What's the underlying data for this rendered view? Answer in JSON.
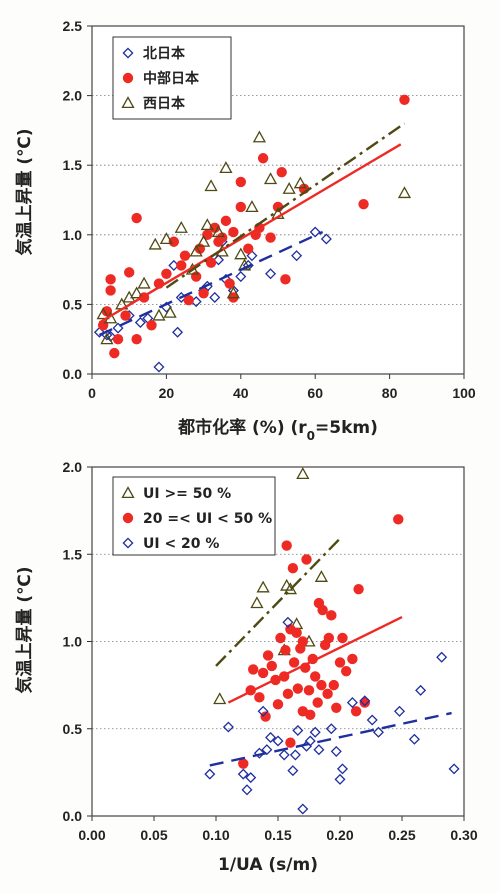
{
  "chart_data": [
    {
      "type": "scatter",
      "xlabel": "都市化率 (%) (r",
      "xlabel_sub": "0",
      "xlabel_tail": "=5km)",
      "ylabel": "気温上昇量 (℃)",
      "xlim": [
        0,
        100
      ],
      "ylim": [
        0,
        2.5
      ],
      "xticks": [
        "0",
        "20",
        "40",
        "60",
        "80",
        "100"
      ],
      "yticks": [
        "0.0",
        "0.5",
        "1.0",
        "1.5",
        "2.0",
        "2.5"
      ],
      "grid": "horizontal dotted",
      "legend_position": "top-left",
      "series": [
        {
          "name": "北日本",
          "marker": "diamond",
          "color": "#1f2f9e",
          "points": [
            [
              2,
              0.3
            ],
            [
              4,
              0.28
            ],
            [
              5,
              0.27
            ],
            [
              7,
              0.33
            ],
            [
              10,
              0.42
            ],
            [
              13,
              0.37
            ],
            [
              15,
              0.4
            ],
            [
              18,
              0.05
            ],
            [
              20,
              0.48
            ],
            [
              22,
              0.78
            ],
            [
              23,
              0.3
            ],
            [
              24,
              0.55
            ],
            [
              28,
              0.52
            ],
            [
              30,
              0.6
            ],
            [
              31,
              0.63
            ],
            [
              33,
              0.55
            ],
            [
              34,
              0.82
            ],
            [
              35,
              0.95
            ],
            [
              36,
              0.68
            ],
            [
              38,
              0.6
            ],
            [
              40,
              0.7
            ],
            [
              42,
              0.78
            ],
            [
              43,
              0.85
            ],
            [
              48,
              0.72
            ],
            [
              55,
              0.85
            ],
            [
              60,
              1.02
            ],
            [
              63,
              0.97
            ]
          ],
          "trend": {
            "x": [
              2,
              62
            ],
            "y": [
              0.28,
              1.02
            ]
          }
        },
        {
          "name": "中部日本",
          "marker": "circle",
          "color": "#ee2a24",
          "points": [
            [
              3,
              0.35
            ],
            [
              4,
              0.45
            ],
            [
              5,
              0.6
            ],
            [
              5,
              0.68
            ],
            [
              6,
              0.15
            ],
            [
              7,
              0.25
            ],
            [
              9,
              0.42
            ],
            [
              10,
              0.73
            ],
            [
              12,
              0.25
            ],
            [
              12,
              1.12
            ],
            [
              14,
              0.55
            ],
            [
              16,
              0.35
            ],
            [
              18,
              0.65
            ],
            [
              20,
              0.72
            ],
            [
              22,
              0.95
            ],
            [
              24,
              0.78
            ],
            [
              25,
              0.85
            ],
            [
              26,
              0.53
            ],
            [
              28,
              0.7
            ],
            [
              29,
              0.9
            ],
            [
              30,
              0.58
            ],
            [
              31,
              1.0
            ],
            [
              32,
              0.8
            ],
            [
              33,
              1.05
            ],
            [
              34,
              0.95
            ],
            [
              35,
              0.98
            ],
            [
              36,
              1.1
            ],
            [
              37,
              0.65
            ],
            [
              38,
              1.02
            ],
            [
              38,
              0.55
            ],
            [
              40,
              1.38
            ],
            [
              40,
              1.2
            ],
            [
              42,
              0.9
            ],
            [
              44,
              1.0
            ],
            [
              45,
              1.05
            ],
            [
              46,
              1.55
            ],
            [
              48,
              0.98
            ],
            [
              50,
              1.2
            ],
            [
              51,
              1.45
            ],
            [
              52,
              0.68
            ],
            [
              57,
              1.33
            ],
            [
              73,
              1.22
            ],
            [
              84,
              1.97
            ]
          ],
          "trend": {
            "x": [
              2,
              83
            ],
            "y": [
              0.37,
              1.65
            ]
          }
        },
        {
          "name": "西日本",
          "marker": "triangle",
          "color": "#4e4a12",
          "points": [
            [
              3,
              0.43
            ],
            [
              4,
              0.25
            ],
            [
              5,
              0.4
            ],
            [
              8,
              0.5
            ],
            [
              10,
              0.55
            ],
            [
              12,
              0.58
            ],
            [
              14,
              0.65
            ],
            [
              17,
              0.93
            ],
            [
              18,
              0.42
            ],
            [
              20,
              0.97
            ],
            [
              21,
              0.44
            ],
            [
              24,
              1.05
            ],
            [
              27,
              0.75
            ],
            [
              28,
              0.88
            ],
            [
              30,
              0.95
            ],
            [
              31,
              1.07
            ],
            [
              32,
              1.35
            ],
            [
              34,
              1.02
            ],
            [
              35,
              0.88
            ],
            [
              36,
              1.48
            ],
            [
              38,
              0.58
            ],
            [
              40,
              0.86
            ],
            [
              41,
              0.78
            ],
            [
              43,
              1.2
            ],
            [
              45,
              1.7
            ],
            [
              48,
              1.4
            ],
            [
              50,
              1.15
            ],
            [
              53,
              1.33
            ],
            [
              56,
              1.37
            ],
            [
              84,
              1.3
            ]
          ],
          "trend": {
            "x": [
              20,
              84
            ],
            "y": [
              0.62,
              1.8
            ]
          }
        }
      ]
    },
    {
      "type": "scatter",
      "xlabel": "1/UA (s/m)",
      "ylabel": "気温上昇量 (℃)",
      "xlim": [
        0,
        0.3
      ],
      "ylim": [
        0,
        2.0
      ],
      "xticks": [
        "0.00",
        "0.05",
        "0.10",
        "0.15",
        "0.20",
        "0.25",
        "0.30"
      ],
      "yticks": [
        "0.0",
        "0.5",
        "1.0",
        "1.5",
        "2.0"
      ],
      "grid": "horizontal dotted",
      "legend_position": "top-left",
      "series": [
        {
          "name": "UI >= 50 %",
          "marker": "triangle",
          "color": "#4e4a12",
          "points": [
            [
              0.103,
              0.67
            ],
            [
              0.133,
              1.22
            ],
            [
              0.138,
              1.31
            ],
            [
              0.155,
              0.95
            ],
            [
              0.157,
              1.32
            ],
            [
              0.16,
              1.3
            ],
            [
              0.165,
              1.1
            ],
            [
              0.17,
              1.96
            ],
            [
              0.175,
              1.0
            ],
            [
              0.185,
              1.37
            ]
          ],
          "trend": {
            "x": [
              0.1,
              0.2
            ],
            "y": [
              0.86,
              1.59
            ]
          }
        },
        {
          "name": "20 =< UI < 50 %",
          "marker": "circle",
          "color": "#ee2a24",
          "points": [
            [
              0.122,
              0.3
            ],
            [
              0.128,
              0.72
            ],
            [
              0.13,
              0.84
            ],
            [
              0.135,
              0.68
            ],
            [
              0.138,
              0.82
            ],
            [
              0.14,
              0.57
            ],
            [
              0.142,
              0.92
            ],
            [
              0.145,
              0.86
            ],
            [
              0.148,
              0.78
            ],
            [
              0.15,
              0.64
            ],
            [
              0.152,
              1.02
            ],
            [
              0.155,
              0.8
            ],
            [
              0.156,
              0.95
            ],
            [
              0.157,
              1.55
            ],
            [
              0.158,
              0.7
            ],
            [
              0.16,
              1.07
            ],
            [
              0.16,
              0.42
            ],
            [
              0.162,
              1.42
            ],
            [
              0.163,
              0.88
            ],
            [
              0.165,
              1.05
            ],
            [
              0.166,
              0.73
            ],
            [
              0.168,
              0.96
            ],
            [
              0.17,
              1.0
            ],
            [
              0.17,
              0.6
            ],
            [
              0.172,
              0.85
            ],
            [
              0.173,
              1.47
            ],
            [
              0.175,
              0.72
            ],
            [
              0.176,
              0.58
            ],
            [
              0.178,
              0.9
            ],
            [
              0.18,
              0.8
            ],
            [
              0.182,
              0.65
            ],
            [
              0.183,
              1.22
            ],
            [
              0.185,
              0.75
            ],
            [
              0.186,
              1.18
            ],
            [
              0.188,
              0.98
            ],
            [
              0.19,
              0.7
            ],
            [
              0.191,
              1.02
            ],
            [
              0.193,
              1.15
            ],
            [
              0.195,
              0.75
            ],
            [
              0.197,
              0.62
            ],
            [
              0.2,
              0.88
            ],
            [
              0.202,
              1.02
            ],
            [
              0.205,
              0.83
            ],
            [
              0.21,
              0.9
            ],
            [
              0.213,
              0.6
            ],
            [
              0.215,
              1.3
            ],
            [
              0.22,
              0.65
            ],
            [
              0.247,
              1.7
            ]
          ],
          "trend": {
            "x": [
              0.11,
              0.25
            ],
            "y": [
              0.65,
              1.14
            ]
          }
        },
        {
          "name": "UI < 20 %",
          "marker": "diamond",
          "color": "#1f2f9e",
          "points": [
            [
              0.095,
              0.24
            ],
            [
              0.11,
              0.51
            ],
            [
              0.122,
              0.24
            ],
            [
              0.125,
              0.15
            ],
            [
              0.128,
              0.22
            ],
            [
              0.135,
              0.36
            ],
            [
              0.138,
              0.6
            ],
            [
              0.141,
              0.38
            ],
            [
              0.144,
              0.45
            ],
            [
              0.15,
              0.43
            ],
            [
              0.155,
              0.35
            ],
            [
              0.158,
              1.11
            ],
            [
              0.162,
              0.26
            ],
            [
              0.164,
              0.35
            ],
            [
              0.166,
              0.49
            ],
            [
              0.17,
              0.04
            ],
            [
              0.173,
              0.4
            ],
            [
              0.176,
              0.43
            ],
            [
              0.18,
              0.48
            ],
            [
              0.183,
              0.38
            ],
            [
              0.193,
              0.5
            ],
            [
              0.197,
              0.37
            ],
            [
              0.2,
              0.21
            ],
            [
              0.202,
              0.27
            ],
            [
              0.21,
              0.65
            ],
            [
              0.22,
              0.66
            ],
            [
              0.226,
              0.55
            ],
            [
              0.231,
              0.48
            ],
            [
              0.248,
              0.6
            ],
            [
              0.26,
              0.44
            ],
            [
              0.265,
              0.72
            ],
            [
              0.282,
              0.91
            ],
            [
              0.292,
              0.27
            ]
          ],
          "trend": {
            "x": [
              0.095,
              0.29
            ],
            "y": [
              0.29,
              0.59
            ]
          }
        }
      ]
    }
  ]
}
